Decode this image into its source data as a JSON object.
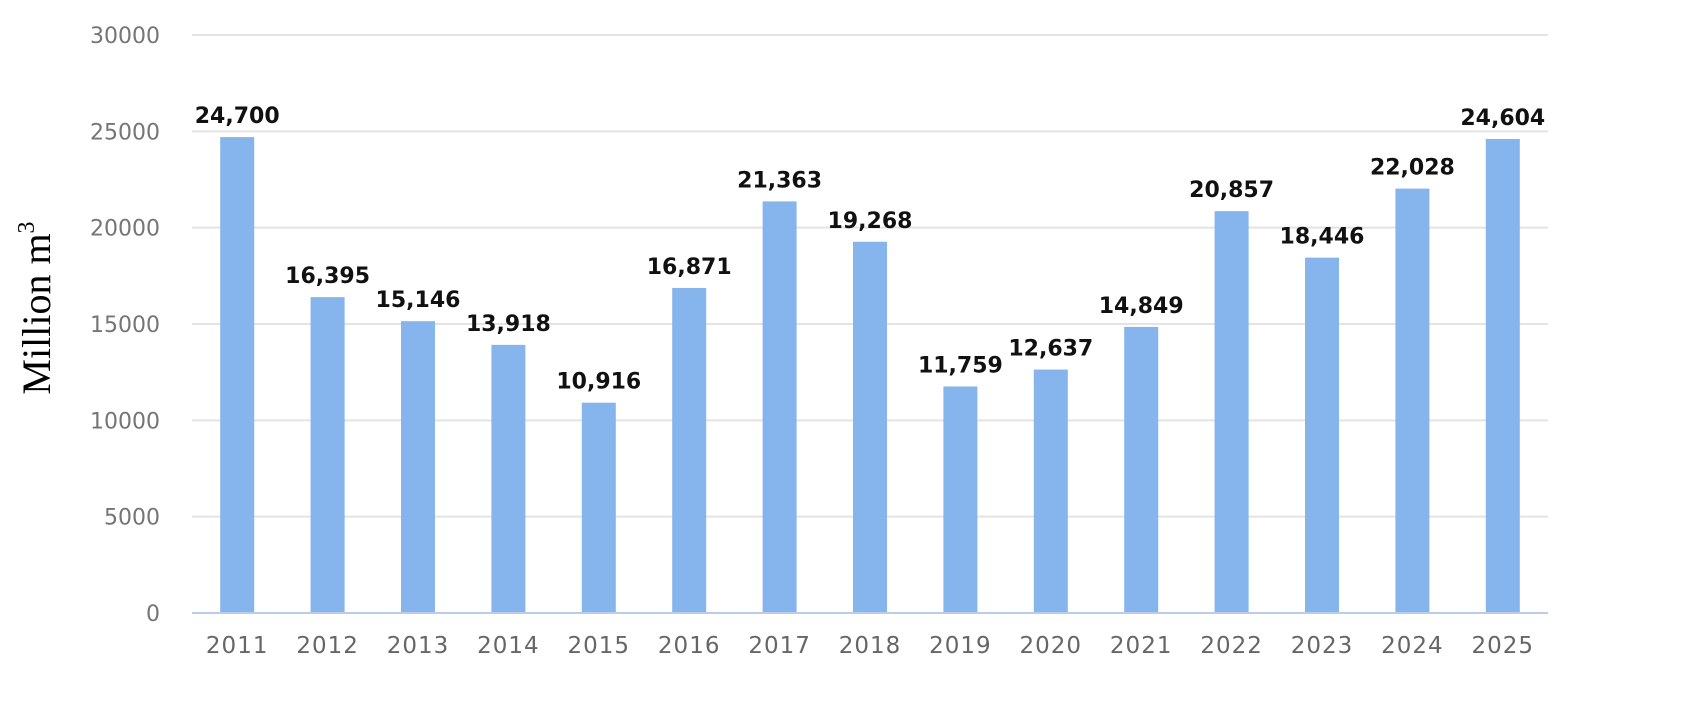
{
  "chart_data": {
    "type": "bar",
    "title": "",
    "xlabel": "",
    "ylabel": "Million m",
    "ylabel_superscript": "3",
    "categories": [
      "2011",
      "2012",
      "2013",
      "2014",
      "2015",
      "2016",
      "2017",
      "2018",
      "2019",
      "2020",
      "2021",
      "2022",
      "2023",
      "2024",
      "2025"
    ],
    "values": [
      24700,
      16395,
      15146,
      13918,
      10916,
      16871,
      21363,
      19268,
      11759,
      12637,
      14849,
      20857,
      18446,
      22028,
      24604
    ],
    "value_labels": [
      "24,700",
      "16,395",
      "15,146",
      "13,918",
      "10,916",
      "16,871",
      "21,363",
      "19,268",
      "11,759",
      "12,637",
      "14,849",
      "20,857",
      "18,446",
      "22,028",
      "24,604"
    ],
    "ylim": [
      0,
      30000
    ],
    "yticks": [
      "0",
      "5000",
      "10000",
      "15000",
      "20000",
      "25000",
      "30000"
    ],
    "grid": true,
    "legend": "none",
    "colors": {
      "bar": "#85b5ec",
      "grid": "#e3e3e3",
      "axis": "#b9cde6"
    }
  }
}
